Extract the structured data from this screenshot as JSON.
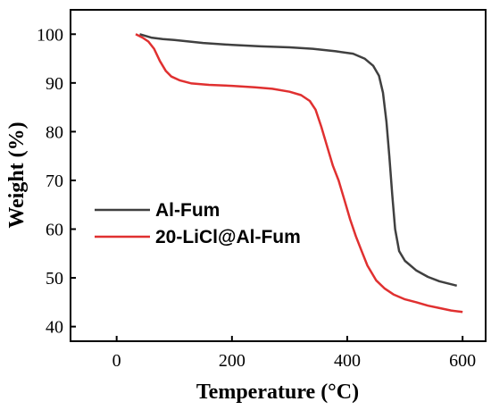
{
  "chart_data": {
    "type": "line",
    "xlabel": "Temperature (°C)",
    "ylabel": "Weight (%)",
    "xlim": [
      -80,
      640
    ],
    "ylim": [
      37,
      105
    ],
    "xticks": [
      0,
      200,
      400,
      600
    ],
    "yticks": [
      40,
      50,
      60,
      70,
      80,
      90,
      100
    ],
    "grid": false,
    "legend_position": "center-left",
    "series": [
      {
        "name": "Al-Fum",
        "color": "#404040",
        "points": [
          [
            40,
            100
          ],
          [
            60,
            99.3
          ],
          [
            80,
            99.0
          ],
          [
            100,
            98.8
          ],
          [
            150,
            98.2
          ],
          [
            200,
            97.8
          ],
          [
            250,
            97.5
          ],
          [
            300,
            97.3
          ],
          [
            340,
            97.0
          ],
          [
            380,
            96.5
          ],
          [
            410,
            96.0
          ],
          [
            430,
            95.0
          ],
          [
            445,
            93.5
          ],
          [
            455,
            91.5
          ],
          [
            462,
            88
          ],
          [
            468,
            82
          ],
          [
            473,
            75
          ],
          [
            478,
            67
          ],
          [
            483,
            60
          ],
          [
            490,
            55.5
          ],
          [
            500,
            53.5
          ],
          [
            520,
            51.5
          ],
          [
            540,
            50.2
          ],
          [
            560,
            49.3
          ],
          [
            590,
            48.4
          ]
        ]
      },
      {
        "name": "20-LiCl@Al-Fum",
        "color": "#e03030",
        "points": [
          [
            33,
            100
          ],
          [
            45,
            99.3
          ],
          [
            55,
            98.5
          ],
          [
            65,
            97
          ],
          [
            75,
            94.5
          ],
          [
            85,
            92.5
          ],
          [
            95,
            91.3
          ],
          [
            110,
            90.5
          ],
          [
            130,
            89.9
          ],
          [
            160,
            89.6
          ],
          [
            200,
            89.4
          ],
          [
            240,
            89.1
          ],
          [
            270,
            88.8
          ],
          [
            300,
            88.2
          ],
          [
            320,
            87.5
          ],
          [
            335,
            86.3
          ],
          [
            345,
            84.5
          ],
          [
            355,
            81
          ],
          [
            365,
            77
          ],
          [
            375,
            73
          ],
          [
            385,
            70
          ],
          [
            395,
            66
          ],
          [
            405,
            62
          ],
          [
            415,
            58.5
          ],
          [
            425,
            55.5
          ],
          [
            435,
            52.5
          ],
          [
            450,
            49.5
          ],
          [
            465,
            47.8
          ],
          [
            480,
            46.6
          ],
          [
            500,
            45.6
          ],
          [
            520,
            45.0
          ],
          [
            540,
            44.3
          ],
          [
            560,
            43.8
          ],
          [
            580,
            43.3
          ],
          [
            600,
            43.0
          ]
        ]
      }
    ]
  }
}
